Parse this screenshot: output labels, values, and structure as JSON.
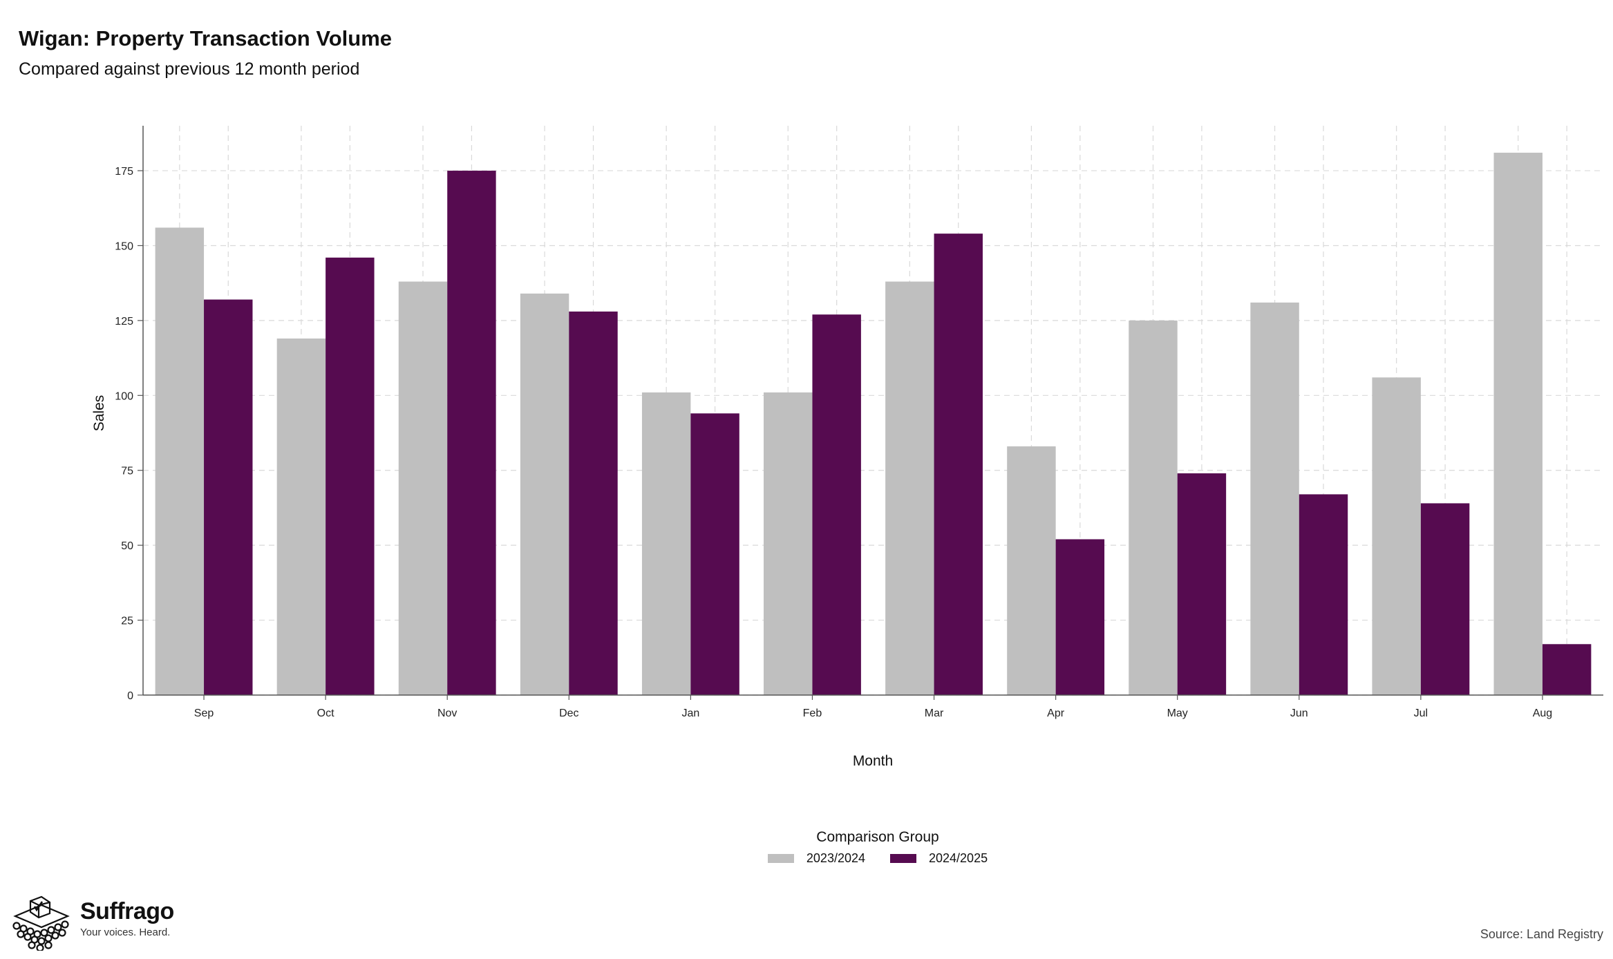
{
  "header": {
    "title": "Wigan: Property Transaction Volume",
    "subtitle": "Compared against previous 12 month period"
  },
  "chart_data": {
    "type": "bar",
    "categories": [
      "Sep",
      "Oct",
      "Nov",
      "Dec",
      "Jan",
      "Feb",
      "Mar",
      "Apr",
      "May",
      "Jun",
      "Jul",
      "Aug"
    ],
    "series": [
      {
        "name": "2023/2024",
        "color": "#bfbfbf",
        "values": [
          156,
          119,
          138,
          134,
          101,
          101,
          138,
          83,
          125,
          131,
          106,
          181
        ]
      },
      {
        "name": "2024/2025",
        "color": "#560b50",
        "values": [
          132,
          146,
          175,
          128,
          94,
          127,
          154,
          52,
          74,
          67,
          64,
          17
        ]
      }
    ],
    "xlabel": "Month",
    "ylabel": "Sales",
    "ylim": [
      0,
      190
    ],
    "yticks": [
      0,
      25,
      50,
      75,
      100,
      125,
      150,
      175
    ],
    "grid": true,
    "legend": {
      "title": "Comparison Group",
      "placement": "bottom"
    }
  },
  "footer": {
    "brand": "Suffrago",
    "tagline": "Your voices. Heard.",
    "source": "Source: Land Registry"
  },
  "icons": {
    "logo": "ballot-box-icon"
  }
}
